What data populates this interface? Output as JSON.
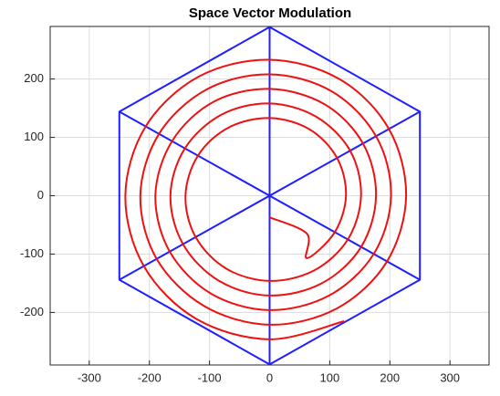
{
  "chart_data": {
    "type": "line",
    "title": "Space Vector Modulation",
    "xlim": [
      -365,
      365
    ],
    "ylim": [
      -290,
      290
    ],
    "xticks": [
      -300,
      -200,
      -100,
      0,
      100,
      200,
      300
    ],
    "yticks": [
      -200,
      -100,
      0,
      100,
      200
    ],
    "grid": true,
    "series": [
      {
        "color": "#1f1fff",
        "smooth": false,
        "x": [
          0,
          250,
          250,
          0,
          -250,
          -250,
          0,
          null,
          0,
          0,
          null,
          -250,
          250,
          null,
          -250,
          250
        ],
        "y": [
          289,
          144,
          -144,
          -289,
          -144,
          144,
          289,
          null,
          289,
          -289,
          null,
          144,
          -144,
          null,
          -144,
          144
        ]
      },
      {
        "color": "#ee1111",
        "smooth": true,
        "x": [
          0,
          62,
          62,
          108,
          127,
          112,
          66,
          0,
          -68,
          -119,
          -140,
          -123,
          -72,
          0,
          74,
          130,
          152,
          134,
          78,
          0,
          -80,
          -141,
          -165,
          -144,
          -84,
          0,
          87,
          152,
          177,
          155,
          91,
          0,
          -93,
          -162,
          -190,
          -166,
          -97,
          0,
          99,
          173,
          202,
          177,
          103,
          0,
          -105,
          -184,
          -215,
          -188,
          -109,
          0,
          112,
          195,
          227,
          198,
          116,
          0,
          -118,
          -206,
          -240,
          -209,
          -122,
          0,
          124
        ],
        "y": [
          -37,
          -65,
          -107,
          -63,
          0,
          65,
          114,
          133,
          117,
          69,
          0,
          -71,
          -125,
          -146,
          -128,
          -75,
          0,
          77,
          135,
          158,
          139,
          81,
          0,
          -83,
          -146,
          -171,
          -150,
          -88,
          0,
          90,
          157,
          183,
          161,
          94,
          0,
          -96,
          -168,
          -196,
          -171,
          -100,
          0,
          102,
          179,
          208,
          182,
          106,
          0,
          -108,
          -189,
          -221,
          -193,
          -113,
          0,
          115,
          200,
          233,
          204,
          119,
          0,
          -121,
          -211,
          -246,
          -215
        ]
      }
    ]
  }
}
